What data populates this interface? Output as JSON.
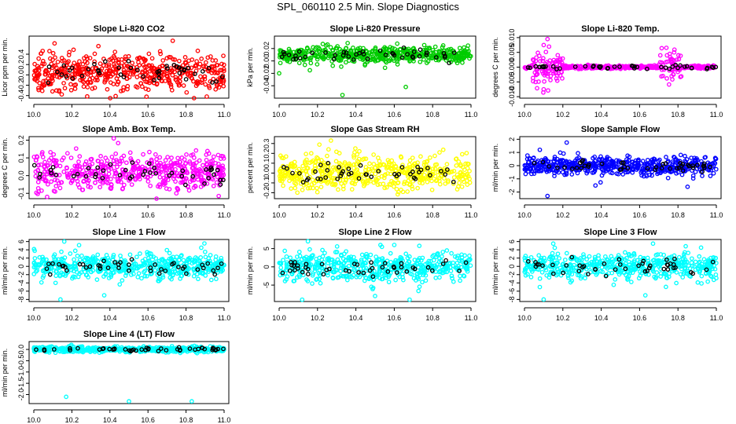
{
  "title": "SPL_060110  2.5 Min. Slope Diagnostics",
  "chart_data": [
    {
      "type": "scatter",
      "title": "Slope Li-820 CO2",
      "ylabel": "Licor ppm per min.",
      "series_color": "#ff0000",
      "highlight_color": "#000000",
      "xlim": [
        10.0,
        11.0
      ],
      "ylim": [
        -0.45,
        0.75
      ],
      "xticks": [
        "10.0",
        "10.2",
        "10.4",
        "10.6",
        "10.8",
        "11.0"
      ],
      "yticks": [
        "-0.4",
        "-0.2",
        "0.0",
        "0.2",
        "0.4"
      ],
      "ytick_values": [
        -0.4,
        -0.2,
        0.0,
        0.2,
        0.4
      ],
      "center": 0.05,
      "spread": 0.17,
      "outliers": [
        [
          10.73,
          0.66
        ],
        [
          10.43,
          -0.41
        ],
        [
          10.05,
          -0.2
        ]
      ]
    },
    {
      "type": "scatter",
      "title": "Slope Li-820 Pressure",
      "ylabel": "kPa per min.",
      "series_color": "#00cc00",
      "highlight_color": "#000000",
      "xlim": [
        10.0,
        11.0
      ],
      "ylim": [
        -0.06,
        0.04
      ],
      "xticks": [
        "10.0",
        "10.2",
        "10.4",
        "10.6",
        "10.8",
        "11.0"
      ],
      "yticks": [
        "-0.04",
        "-0.02",
        "0.00",
        "0.02"
      ],
      "ytick_values": [
        -0.04,
        -0.02,
        0.0,
        0.02
      ],
      "center": 0.01,
      "spread": 0.007,
      "outliers": [
        [
          10.33,
          -0.055
        ],
        [
          10.66,
          -0.042
        ],
        [
          10.0,
          -0.02
        ],
        [
          10.16,
          -0.015
        ]
      ]
    },
    {
      "type": "scatter",
      "title": "Slope Li-820 Temp.",
      "ylabel": "degrees C per min.",
      "series_color": "#ff00ff",
      "highlight_color": "#000000",
      "xlim": [
        10.0,
        11.0
      ],
      "ylim": [
        -0.0105,
        0.0105
      ],
      "xticks": [
        "10.0",
        "10.2",
        "10.4",
        "10.6",
        "10.8",
        "11.0"
      ],
      "yticks": [
        "-0.010",
        "-0.005",
        "0.000",
        "0.005",
        "0.010"
      ],
      "ytick_values": [
        -0.01,
        -0.005,
        0.0,
        0.005,
        0.01
      ],
      "center": 0.0,
      "spread": 0.003,
      "outliers": [
        [
          10.12,
          0.0095
        ],
        [
          10.1,
          -0.0075
        ],
        [
          10.78,
          0.005
        ]
      ]
    },
    {
      "type": "scatter",
      "title": "Slope Amb. Box Temp.",
      "ylabel": "degrees C per min.",
      "series_color": "#ff00ff",
      "highlight_color": "#000000",
      "xlim": [
        10.0,
        11.0
      ],
      "ylim": [
        -0.13,
        0.22
      ],
      "xticks": [
        "10.0",
        "10.2",
        "10.4",
        "10.6",
        "10.8",
        "11.0"
      ],
      "yticks": [
        "-0.1",
        "0.0",
        "0.1",
        "0.2"
      ],
      "ytick_values": [
        -0.1,
        0.0,
        0.1,
        0.2
      ],
      "center": 0.02,
      "spread": 0.05,
      "outliers": [
        [
          10.42,
          0.21
        ],
        [
          10.07,
          -0.12
        ]
      ]
    },
    {
      "type": "scatter",
      "title": "Slope Gas Stream RH",
      "ylabel": "percent per min.",
      "series_color": "#ffff00",
      "highlight_color": "#000000",
      "xlim": [
        10.0,
        11.0
      ],
      "ylim": [
        -0.26,
        0.37
      ],
      "xticks": [
        "10.0",
        "10.2",
        "10.4",
        "10.6",
        "10.8",
        "11.0"
      ],
      "yticks": [
        "-0.2",
        "-0.1",
        "0.0",
        "0.1",
        "0.2",
        "0.3"
      ],
      "ytick_values": [
        -0.2,
        -0.1,
        0.0,
        0.1,
        0.2,
        0.3
      ],
      "center": 0.0,
      "spread": 0.09,
      "outliers": [
        [
          10.27,
          0.33
        ]
      ]
    },
    {
      "type": "scatter",
      "title": "Slope Sample Flow",
      "ylabel": "ml/min per min.",
      "series_color": "#0000ff",
      "highlight_color": "#000000",
      "xlim": [
        10.0,
        11.0
      ],
      "ylim": [
        -2.5,
        2.2
      ],
      "xticks": [
        "10.0",
        "10.2",
        "10.4",
        "10.6",
        "10.8",
        "11.0"
      ],
      "yticks": [
        "-2",
        "-1",
        "0",
        "1",
        "2"
      ],
      "ytick_values": [
        -2,
        -1,
        0,
        1,
        2
      ],
      "center": 0.0,
      "spread": 0.35,
      "outliers": [
        [
          10.22,
          1.75
        ],
        [
          10.12,
          -2.3
        ],
        [
          10.37,
          -1.5
        ],
        [
          10.85,
          -1.6
        ],
        [
          10.08,
          1.2
        ]
      ]
    },
    {
      "type": "scatter",
      "title": "Slope Line 1 Flow",
      "ylabel": "ml/min per min.",
      "series_color": "#00ffff",
      "highlight_color": "#000000",
      "xlim": [
        10.0,
        11.0
      ],
      "ylim": [
        -8.5,
        6.5
      ],
      "xticks": [
        "10.0",
        "10.2",
        "10.4",
        "10.6",
        "10.8",
        "11.0"
      ],
      "yticks": [
        "-8",
        "-6",
        "-4",
        "-2",
        "0",
        "2",
        "4",
        "6"
      ],
      "ytick_values": [
        -8,
        -6,
        -4,
        -2,
        0,
        2,
        4,
        6
      ],
      "center": 0.0,
      "spread": 1.4,
      "outliers": [
        [
          10.14,
          -8
        ],
        [
          10.16,
          6
        ],
        [
          10.37,
          -7
        ],
        [
          10.88,
          4.5
        ]
      ]
    },
    {
      "type": "scatter",
      "title": "Slope Line 2 Flow",
      "ylabel": "ml/min per min.",
      "series_color": "#00ffff",
      "highlight_color": "#000000",
      "xlim": [
        10.0,
        11.0
      ],
      "ylim": [
        -9.5,
        7.5
      ],
      "xticks": [
        "10.0",
        "10.2",
        "10.4",
        "10.6",
        "10.8",
        "11.0"
      ],
      "yticks": [
        "-5",
        "0",
        "5"
      ],
      "ytick_values": [
        -5,
        0,
        5
      ],
      "center": 0.0,
      "spread": 2.0,
      "outliers": [
        [
          10.12,
          -9
        ],
        [
          10.15,
          7
        ],
        [
          10.5,
          -8
        ],
        [
          10.68,
          -9
        ],
        [
          10.6,
          6
        ]
      ]
    },
    {
      "type": "scatter",
      "title": "Slope Line 3 Flow",
      "ylabel": "ml/min per min.",
      "series_color": "#00ffff",
      "highlight_color": "#000000",
      "xlim": [
        10.0,
        11.0
      ],
      "ylim": [
        -8.5,
        6.5
      ],
      "xticks": [
        "10.0",
        "10.2",
        "10.4",
        "10.6",
        "10.8",
        "11.0"
      ],
      "yticks": [
        "-8",
        "-6",
        "-4",
        "-2",
        "0",
        "2",
        "4",
        "6"
      ],
      "ytick_values": [
        -8,
        -6,
        -4,
        -2,
        0,
        2,
        4,
        6
      ],
      "center": 0.0,
      "spread": 1.6,
      "outliers": [
        [
          10.1,
          -8
        ],
        [
          10.15,
          5.5
        ],
        [
          10.63,
          -7
        ],
        [
          10.67,
          5.5
        ],
        [
          10.08,
          -5
        ]
      ]
    },
    {
      "type": "scatter",
      "title": "Slope Line 4 (LT) Flow",
      "ylabel": "ml/min per min.",
      "series_color": "#00ffff",
      "highlight_color": "#000000",
      "xlim": [
        10.0,
        11.0
      ],
      "ylim": [
        -2.4,
        0.35
      ],
      "xticks": [
        "10.0",
        "10.2",
        "10.4",
        "10.6",
        "10.8",
        "11.0"
      ],
      "yticks": [
        "-2.0",
        "-1.5",
        "-1.0",
        "-0.5",
        "0.0"
      ],
      "ytick_values": [
        -2.0,
        -1.5,
        -1.0,
        -0.5,
        0.0
      ],
      "center": 0.0,
      "spread": 0.06,
      "outliers": [
        [
          10.17,
          -2.1
        ],
        [
          10.5,
          -2.3
        ],
        [
          10.83,
          -2.3
        ]
      ]
    }
  ]
}
